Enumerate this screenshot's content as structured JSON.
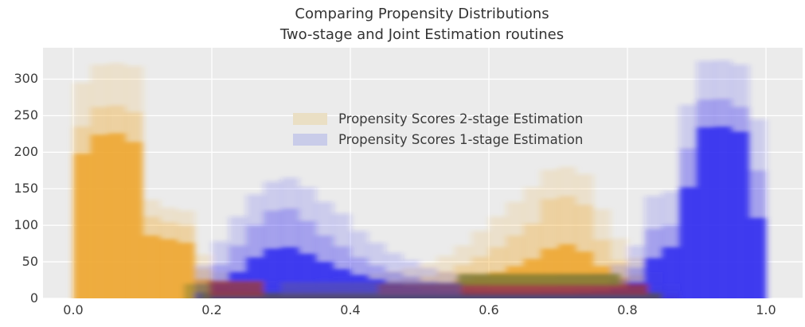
{
  "title": {
    "line1": "Comparing Propensity Distributions",
    "line2": "Two-stage and Joint Estimation routines"
  },
  "legend": {
    "items": [
      {
        "label": "Propensity Scores 2-stage Estimation",
        "swatch": "#eadfc4"
      },
      {
        "label": "Propensity Scores 1-stage Estimation",
        "swatch": "#c9cce9"
      }
    ]
  },
  "axes": {
    "x_ticks": [
      {
        "label": "0.0",
        "value": 0.0
      },
      {
        "label": "0.2",
        "value": 0.2
      },
      {
        "label": "0.4",
        "value": 0.4
      },
      {
        "label": "0.6",
        "value": 0.6
      },
      {
        "label": "0.8",
        "value": 0.8
      },
      {
        "label": "1.0",
        "value": 1.0
      }
    ],
    "y_ticks": [
      {
        "label": "0",
        "value": 0
      },
      {
        "label": "50",
        "value": 50
      },
      {
        "label": "100",
        "value": 100
      },
      {
        "label": "150",
        "value": 150
      },
      {
        "label": "200",
        "value": 200
      },
      {
        "label": "250",
        "value": 250
      },
      {
        "label": "300",
        "value": 300
      }
    ]
  },
  "chart_data": {
    "type": "bar",
    "subtype": "overlaid-translucent-histograms-bootstrap",
    "title": "Comparing Propensity Distributions\nTwo-stage and Joint Estimation routines",
    "xlabel": "",
    "ylabel": "",
    "xlim": [
      -0.0437,
      1.0529
    ],
    "ylim": [
      0,
      343
    ],
    "grid": {
      "on": true,
      "color": "#ffffff",
      "linewidth": 1.3
    },
    "plot_bg": "#ebebeb",
    "figure_bg": "#ffffff",
    "legend_position": "upper center",
    "bin_start": 0.0,
    "bin_width": 0.025,
    "series": [
      {
        "name": "Propensity Scores 2-stage Estimation",
        "color": "#efa62b",
        "envelope": [
          295,
          320,
          322,
          318,
          135,
          124,
          120,
          60,
          36,
          30,
          26,
          24,
          24,
          25,
          27,
          30,
          32,
          34,
          38,
          42,
          48,
          58,
          72,
          92,
          112,
          132,
          152,
          176,
          180,
          170,
          122,
          82,
          56,
          36,
          20,
          0,
          0,
          0,
          0,
          0
        ],
        "mid": [
          235,
          262,
          264,
          255,
          112,
          104,
          100,
          40,
          25,
          20,
          17,
          15,
          15,
          16,
          17,
          19,
          21,
          22,
          25,
          28,
          30,
          37,
          46,
          57,
          70,
          86,
          102,
          136,
          140,
          128,
          80,
          52,
          32,
          18,
          10,
          0,
          0,
          0,
          0,
          0
        ],
        "core": [
          198,
          224,
          226,
          214,
          86,
          81,
          76,
          26,
          17,
          12,
          10,
          8,
          8,
          9,
          10,
          11,
          12,
          13,
          14,
          15,
          17,
          20,
          25,
          30,
          36,
          44,
          54,
          68,
          74,
          64,
          44,
          28,
          15,
          8,
          4,
          0,
          0,
          0,
          0,
          0
        ]
      },
      {
        "name": "Propensity Scores 1-stage Estimation",
        "color": "#2e2af0",
        "envelope": [
          0,
          0,
          0,
          0,
          0,
          0,
          0,
          45,
          78,
          112,
          142,
          160,
          165,
          152,
          132,
          116,
          92,
          76,
          62,
          52,
          42,
          36,
          32,
          30,
          28,
          27,
          27,
          28,
          30,
          31,
          33,
          46,
          72,
          140,
          146,
          265,
          325,
          326,
          320,
          245
        ],
        "mid": [
          0,
          0,
          0,
          0,
          0,
          0,
          0,
          20,
          46,
          72,
          100,
          120,
          123,
          106,
          86,
          71,
          56,
          45,
          36,
          30,
          23,
          20,
          18,
          16,
          14,
          14,
          14,
          15,
          16,
          17,
          18,
          26,
          42,
          95,
          100,
          205,
          272,
          273,
          262,
          175
        ],
        "core": [
          0,
          0,
          0,
          0,
          0,
          0,
          0,
          8,
          20,
          36,
          56,
          68,
          70,
          61,
          50,
          40,
          32,
          26,
          20,
          16,
          12,
          10,
          9,
          8,
          7,
          7,
          7,
          8,
          8,
          9,
          10,
          13,
          22,
          55,
          70,
          152,
          234,
          235,
          228,
          110
        ]
      }
    ],
    "overlap_bands": [
      {
        "x0": 0.185,
        "x1": 0.85,
        "y0": 0,
        "y1": 8,
        "color": "#544d60",
        "alpha": 0.85
      },
      {
        "x0": 0.195,
        "x1": 0.275,
        "y0": 3,
        "y1": 24,
        "color": "#9a3a40",
        "alpha": 0.8
      },
      {
        "x0": 0.44,
        "x1": 0.83,
        "y0": 5,
        "y1": 20,
        "color": "#993540",
        "alpha": 0.8
      },
      {
        "x0": 0.555,
        "x1": 0.79,
        "y0": 18,
        "y1": 34,
        "color": "#7d7b2f",
        "alpha": 0.8
      },
      {
        "x0": 0.16,
        "x1": 0.198,
        "y0": 0,
        "y1": 20,
        "color": "#7d7b2f",
        "alpha": 0.5
      },
      {
        "x0": 0.3,
        "x1": 0.56,
        "y0": 4,
        "y1": 22,
        "color": "#5d55a8",
        "alpha": 0.55
      }
    ]
  }
}
